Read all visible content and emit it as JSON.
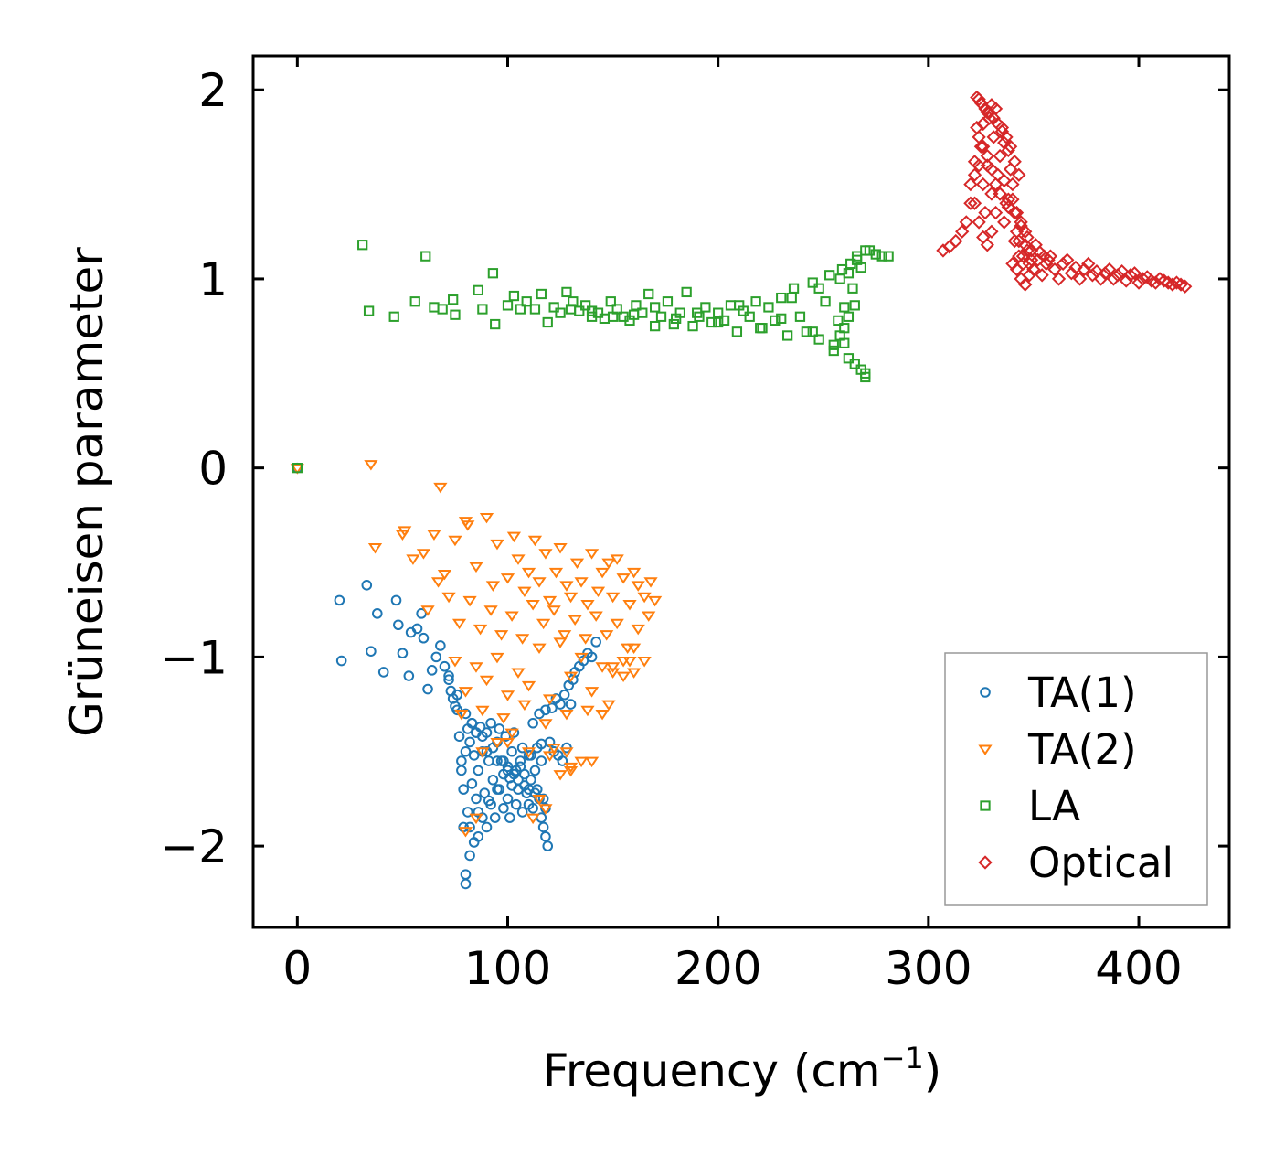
{
  "chart_data": {
    "type": "scatter",
    "title": "",
    "xlabel": "Frequency (cm",
    "xlabel_superscript": "−1",
    "xlabel_suffix": ")",
    "ylabel": "Grüneisen parameter",
    "xlim": [
      -21,
      443
    ],
    "ylim": [
      -2.43,
      2.18
    ],
    "xticks": [
      0,
      100,
      200,
      300,
      400
    ],
    "xtick_labels": [
      "0",
      "100",
      "200",
      "300",
      "400"
    ],
    "yticks": [
      -2,
      -1,
      0,
      1,
      2
    ],
    "ytick_labels": [
      "−2",
      "−1",
      "0",
      "1",
      "2"
    ],
    "grid": false,
    "legend_position": "lower-right",
    "series": [
      {
        "name": "TA(1)",
        "marker": "circle",
        "color": "#1f77b4",
        "x": [
          0,
          20,
          21,
          33,
          35,
          38,
          41,
          47,
          48,
          50,
          53,
          54,
          57,
          59,
          60,
          62,
          64,
          66,
          68,
          70,
          72,
          73,
          74,
          75,
          76,
          77,
          78,
          78,
          79,
          79,
          80,
          80,
          80,
          81,
          81,
          82,
          82,
          83,
          83,
          84,
          84,
          85,
          85,
          86,
          86,
          87,
          88,
          88,
          89,
          90,
          90,
          91,
          92,
          92,
          93,
          94,
          95,
          95,
          96,
          97,
          98,
          98,
          99,
          100,
          100,
          101,
          102,
          102,
          103,
          104,
          104,
          105,
          106,
          107,
          107,
          108,
          109,
          110,
          110,
          111,
          112,
          112,
          113,
          114,
          114,
          115,
          116,
          116,
          117,
          117,
          118,
          118,
          119,
          120,
          121,
          122,
          123,
          124,
          125,
          126,
          127,
          128,
          129,
          130,
          131,
          132,
          134,
          136,
          138,
          140,
          142,
          72,
          76,
          80,
          85,
          90,
          95,
          100,
          105,
          110,
          115,
          83,
          88,
          93,
          98,
          103,
          108,
          113,
          118,
          82,
          86,
          91,
          96,
          101,
          106,
          111,
          116
        ],
        "y": [
          0.0,
          -0.7,
          -1.02,
          -0.62,
          -0.97,
          -0.77,
          -1.08,
          -0.7,
          -0.83,
          -0.98,
          -1.1,
          -0.87,
          -0.85,
          -0.77,
          -0.9,
          -1.17,
          -1.07,
          -1.0,
          -0.94,
          -1.05,
          -1.12,
          -1.18,
          -1.22,
          -1.26,
          -1.28,
          -1.42,
          -1.55,
          -1.6,
          -1.7,
          -1.9,
          -2.2,
          -2.15,
          -1.5,
          -1.38,
          -1.82,
          -2.05,
          -1.45,
          -1.35,
          -1.67,
          -1.98,
          -1.52,
          -1.4,
          -1.75,
          -1.95,
          -1.6,
          -1.37,
          -1.5,
          -1.85,
          -1.72,
          -1.4,
          -1.9,
          -1.55,
          -1.78,
          -1.35,
          -1.65,
          -1.85,
          -1.45,
          -1.7,
          -1.38,
          -1.55,
          -1.8,
          -1.62,
          -1.42,
          -1.75,
          -1.58,
          -1.85,
          -1.5,
          -1.68,
          -1.4,
          -1.78,
          -1.6,
          -1.7,
          -1.55,
          -1.48,
          -1.82,
          -1.62,
          -1.72,
          -1.52,
          -1.78,
          -1.65,
          -1.35,
          -1.8,
          -1.6,
          -1.48,
          -1.7,
          -1.3,
          -1.85,
          -1.55,
          -1.9,
          -1.75,
          -1.95,
          -1.28,
          -2.0,
          -1.45,
          -1.27,
          -1.5,
          -1.22,
          -1.52,
          -1.25,
          -1.55,
          -1.2,
          -1.48,
          -1.15,
          -1.25,
          -1.12,
          -1.08,
          -1.05,
          -1.02,
          -0.98,
          -1.0,
          -0.92,
          -1.1,
          -1.2,
          -1.3,
          -1.4,
          -1.5,
          -1.55,
          -1.6,
          -1.65,
          -1.7,
          -1.75,
          -1.35,
          -1.42,
          -1.48,
          -1.55,
          -1.62,
          -1.68,
          -1.72,
          -1.8,
          -1.9,
          -1.82,
          -1.76,
          -1.7,
          -1.64,
          -1.58,
          -1.52,
          -1.46
        ]
      },
      {
        "name": "TA(2)",
        "marker": "triangle_down",
        "color": "#ff7f0e",
        "x": [
          0,
          35,
          68,
          37,
          50,
          51,
          55,
          60,
          65,
          70,
          75,
          80,
          81,
          85,
          90,
          93,
          95,
          100,
          103,
          105,
          108,
          110,
          113,
          115,
          118,
          120,
          123,
          125,
          128,
          130,
          133,
          135,
          138,
          140,
          143,
          145,
          148,
          150,
          152,
          155,
          158,
          160,
          162,
          165,
          168,
          170,
          62,
          67,
          72,
          77,
          82,
          87,
          92,
          97,
          102,
          107,
          112,
          117,
          122,
          127,
          132,
          137,
          142,
          147,
          152,
          157,
          162,
          167,
          75,
          85,
          95,
          105,
          115,
          125,
          135,
          145,
          155,
          165,
          80,
          90,
          100,
          110,
          120,
          130,
          140,
          150,
          160,
          78,
          88,
          98,
          108,
          118,
          128,
          138,
          148,
          158,
          100,
          110,
          120,
          130,
          140,
          145,
          150,
          155,
          160,
          125,
          130,
          135,
          128,
          122,
          118,
          115,
          112,
          88,
          95,
          102,
          80,
          85
        ],
        "y": [
          0.0,
          0.02,
          -0.1,
          -0.42,
          -0.35,
          -0.33,
          -0.48,
          -0.45,
          -0.35,
          -0.56,
          -0.38,
          -0.28,
          -0.3,
          -0.52,
          -0.26,
          -0.62,
          -0.4,
          -0.58,
          -0.36,
          -0.48,
          -0.65,
          -0.55,
          -0.38,
          -0.6,
          -0.45,
          -0.7,
          -0.55,
          -0.42,
          -0.62,
          -0.68,
          -0.5,
          -0.6,
          -0.72,
          -0.45,
          -0.65,
          -0.55,
          -0.5,
          -0.68,
          -0.48,
          -0.58,
          -0.72,
          -0.55,
          -0.62,
          -0.68,
          -0.6,
          -0.7,
          -0.75,
          -0.6,
          -0.68,
          -0.82,
          -0.7,
          -0.85,
          -0.75,
          -0.88,
          -0.78,
          -0.9,
          -0.72,
          -0.82,
          -0.75,
          -0.88,
          -0.8,
          -0.9,
          -0.78,
          -0.88,
          -0.82,
          -0.95,
          -0.85,
          -0.78,
          -1.02,
          -1.05,
          -1.0,
          -1.08,
          -0.95,
          -0.92,
          -1.0,
          -1.05,
          -1.1,
          -1.02,
          -1.18,
          -1.12,
          -1.2,
          -1.15,
          -1.22,
          -1.1,
          -1.18,
          -1.05,
          -1.08,
          -1.3,
          -1.28,
          -1.32,
          -1.25,
          -1.35,
          -1.3,
          -1.28,
          -1.25,
          -1.02,
          -1.45,
          -1.5,
          -1.52,
          -1.58,
          -1.55,
          -1.3,
          -1.08,
          -1.02,
          -0.95,
          -1.62,
          -1.6,
          -1.55,
          -1.5,
          -1.48,
          -1.8,
          -1.75,
          -1.85,
          -1.5,
          -1.45,
          -1.4,
          -1.92,
          -1.85
        ]
      },
      {
        "name": "LA",
        "marker": "square",
        "color": "#2ca02c",
        "x": [
          0,
          31,
          34,
          46,
          56,
          61,
          65,
          69,
          74,
          75,
          86,
          88,
          93,
          94,
          100,
          103,
          106,
          109,
          113,
          116,
          119,
          122,
          125,
          128,
          131,
          134,
          137,
          140,
          143,
          146,
          149,
          152,
          155,
          158,
          161,
          164,
          167,
          170,
          173,
          176,
          179,
          182,
          185,
          188,
          191,
          194,
          197,
          200,
          203,
          206,
          209,
          212,
          215,
          218,
          221,
          224,
          227,
          230,
          233,
          236,
          239,
          242,
          245,
          248,
          251,
          253,
          255,
          257,
          259,
          260,
          262,
          263,
          265,
          266,
          268,
          270,
          272,
          275,
          278,
          281,
          130,
          150,
          170,
          190,
          210,
          230,
          245,
          255,
          260,
          264,
          268,
          270,
          140,
          160,
          180,
          200,
          220,
          235,
          248,
          258,
          262,
          266,
          270,
          258,
          260,
          262,
          265
        ],
        "y": [
          0.0,
          1.18,
          0.83,
          0.8,
          0.88,
          1.12,
          0.85,
          0.84,
          0.89,
          0.81,
          0.94,
          0.84,
          1.03,
          0.76,
          0.86,
          0.91,
          0.84,
          0.88,
          0.84,
          0.92,
          0.77,
          0.85,
          0.82,
          0.93,
          0.88,
          0.83,
          0.86,
          0.8,
          0.82,
          0.79,
          0.88,
          0.84,
          0.8,
          0.78,
          0.86,
          0.82,
          0.92,
          0.75,
          0.8,
          0.88,
          0.76,
          0.82,
          0.93,
          0.75,
          0.8,
          0.85,
          0.77,
          0.82,
          0.78,
          0.86,
          0.72,
          0.83,
          0.8,
          0.88,
          0.74,
          0.85,
          0.78,
          0.9,
          0.7,
          0.95,
          0.8,
          0.72,
          0.98,
          0.68,
          0.88,
          1.02,
          0.62,
          0.78,
          1.05,
          0.66,
          0.58,
          1.08,
          0.55,
          1.12,
          0.52,
          0.48,
          1.15,
          1.13,
          1.12,
          1.12,
          0.84,
          0.8,
          0.85,
          0.82,
          0.86,
          0.79,
          0.72,
          0.65,
          0.85,
          0.95,
          1.06,
          0.5,
          0.83,
          0.81,
          0.79,
          0.77,
          0.74,
          0.9,
          0.95,
          1.0,
          1.03,
          1.1,
          1.15,
          0.7,
          0.74,
          0.8,
          0.86
        ]
      },
      {
        "name": "Optical",
        "marker": "diamond",
        "color": "#d62728",
        "x": [
          307,
          310,
          313,
          316,
          318,
          320,
          322,
          323,
          324,
          325,
          326,
          327,
          328,
          329,
          330,
          331,
          332,
          333,
          334,
          335,
          336,
          337,
          338,
          339,
          340,
          341,
          342,
          343,
          344,
          345,
          346,
          347,
          348,
          349,
          350,
          352,
          354,
          356,
          358,
          360,
          362,
          364,
          366,
          368,
          370,
          372,
          374,
          376,
          378,
          380,
          382,
          384,
          386,
          388,
          390,
          392,
          394,
          396,
          398,
          400,
          402,
          404,
          406,
          408,
          410,
          412,
          414,
          416,
          418,
          420,
          422,
          323,
          325,
          327,
          329,
          331,
          333,
          335,
          337,
          339,
          341,
          343,
          322,
          324,
          326,
          328,
          330,
          332,
          334,
          336,
          338,
          340,
          342,
          344,
          346,
          324,
          326,
          328,
          330,
          332,
          334,
          336,
          338,
          341,
          343,
          345,
          347,
          349,
          351,
          353,
          355,
          357,
          320,
          322,
          324,
          326,
          328,
          330,
          340,
          342,
          344,
          346,
          348
        ],
        "y": [
          1.15,
          1.17,
          1.2,
          1.25,
          1.3,
          1.4,
          1.55,
          1.8,
          1.95,
          1.7,
          1.5,
          1.35,
          1.6,
          1.85,
          1.45,
          1.75,
          1.9,
          1.55,
          1.65,
          1.8,
          1.72,
          1.4,
          1.68,
          1.58,
          1.5,
          1.35,
          1.25,
          1.2,
          1.28,
          1.12,
          1.18,
          1.22,
          1.08,
          1.15,
          1.05,
          1.1,
          1.02,
          1.08,
          1.12,
          1.05,
          1.0,
          1.08,
          1.1,
          1.03,
          1.06,
          1.0,
          1.05,
          1.08,
          1.02,
          1.04,
          1.0,
          1.03,
          1.05,
          1.0,
          1.02,
          1.04,
          0.99,
          1.02,
          1.03,
          0.98,
          1.0,
          1.01,
          0.99,
          0.98,
          1.0,
          0.99,
          0.98,
          0.97,
          0.98,
          0.97,
          0.96,
          1.96,
          1.93,
          1.9,
          1.88,
          1.85,
          1.82,
          1.78,
          1.75,
          1.7,
          1.62,
          1.55,
          1.4,
          1.3,
          1.22,
          1.18,
          1.25,
          1.35,
          1.45,
          1.3,
          1.38,
          1.42,
          1.35,
          1.3,
          1.25,
          1.6,
          1.7,
          1.65,
          1.58,
          1.5,
          1.45,
          1.52,
          1.42,
          1.2,
          1.12,
          1.08,
          1.15,
          1.1,
          1.18,
          1.14,
          1.12,
          1.1,
          1.5,
          1.62,
          1.75,
          1.82,
          1.88,
          1.92,
          1.08,
          1.05,
          1.0,
          0.97,
          1.02
        ]
      }
    ]
  }
}
